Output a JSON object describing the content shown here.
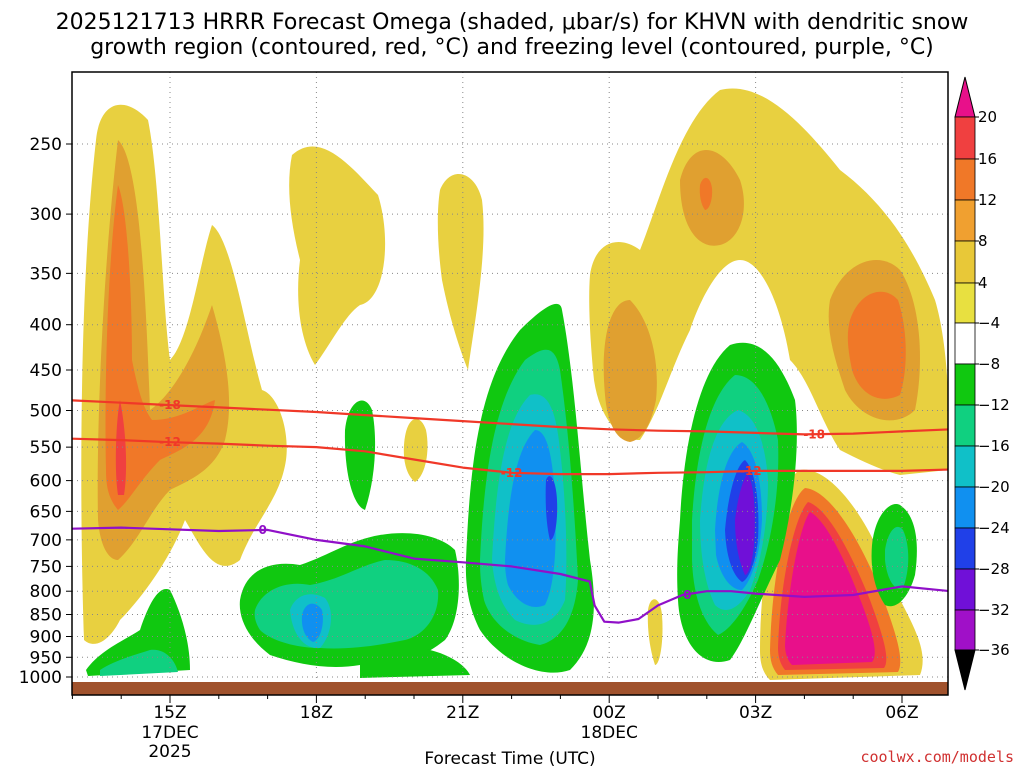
{
  "chart_data": {
    "type": "heatmap",
    "title_line1": "2025121713 HRRR Forecast Omega (shaded, μbar/s) for KHVN with dendritic snow",
    "title_line2": "growth region (contoured, red, °C) and freezing level (contoured, purple, °C)",
    "xlabel": "Forecast Time (UTC)",
    "ylabel": "",
    "x_ticks": [
      {
        "hour": 15,
        "label": "15Z",
        "date": "17DEC",
        "year": "2025"
      },
      {
        "hour": 18,
        "label": "18Z",
        "date": "",
        "year": ""
      },
      {
        "hour": 21,
        "label": "21Z",
        "date": "",
        "year": ""
      },
      {
        "hour": 24,
        "label": "00Z",
        "date": "18DEC",
        "year": ""
      },
      {
        "hour": 27,
        "label": "03Z",
        "date": "",
        "year": ""
      },
      {
        "hour": 30,
        "label": "06Z",
        "date": "",
        "year": ""
      }
    ],
    "xlim": [
      13,
      31
    ],
    "y_ticks": [
      "250",
      "300",
      "350",
      "400",
      "450",
      "500",
      "550",
      "600",
      "650",
      "700",
      "750",
      "800",
      "850",
      "900",
      "950",
      "1000"
    ],
    "y_tick_values": [
      250,
      300,
      350,
      400,
      450,
      500,
      550,
      600,
      650,
      700,
      750,
      800,
      850,
      900,
      950,
      1000
    ],
    "ylim": [
      1025,
      200
    ],
    "colorbar": {
      "labels": [
        "20",
        "16",
        "12",
        "8",
        "4",
        "−4",
        "−8",
        "−12",
        "−16",
        "−20",
        "−24",
        "−28",
        "−32",
        "−36"
      ],
      "levels": [
        20,
        16,
        12,
        8,
        4,
        -4,
        -8,
        -12,
        -16,
        -20,
        -24,
        -28,
        -32,
        -36
      ],
      "colors": [
        "#e8108a",
        "#f04040",
        "#f07828",
        "#f0a030",
        "#e8c838",
        "#e8e040",
        "#ffffff",
        "#10c810",
        "#10d080",
        "#10c0c8",
        "#1090f0",
        "#2040e8",
        "#7010d8",
        "#a010c8",
        "#a8a8a8",
        "#000000"
      ]
    },
    "omega_features": [
      {
        "name": "rising-core-2030z",
        "hour": 22.8,
        "pressure": 620,
        "min_omega": -24
      },
      {
        "name": "rising-core-0230z",
        "hour": 26.9,
        "pressure": 640,
        "min_omega": -32
      },
      {
        "name": "sinking-core-0430z",
        "hour": 28.7,
        "pressure": 900,
        "max_omega": 24
      },
      {
        "name": "sinking-core-1410z",
        "hour": 14.1,
        "pressure": 550,
        "max_omega": 16
      }
    ],
    "dgz_contours": [
      {
        "label": "-18",
        "color": "#f03828",
        "hours": [
          13,
          14,
          15,
          16,
          17,
          18,
          19,
          20,
          21,
          22,
          23,
          24,
          25,
          26,
          27,
          28,
          29,
          30,
          31
        ],
        "pressure": [
          487,
          490,
          493,
          496,
          499,
          502,
          506,
          510,
          514,
          518,
          522,
          525,
          527,
          528,
          530,
          532,
          531,
          528,
          525
        ]
      },
      {
        "label": "-12",
        "color": "#f03828",
        "hours": [
          13,
          14,
          15,
          16,
          17,
          18,
          19,
          20,
          21,
          22,
          23,
          24,
          25,
          26,
          27,
          28,
          29,
          30,
          31
        ],
        "pressure": [
          538,
          540,
          543,
          545,
          548,
          550,
          556,
          568,
          580,
          588,
          590,
          590,
          588,
          587,
          585,
          585,
          585,
          585,
          583
        ]
      }
    ],
    "freezing_level": {
      "label": "0",
      "color": "#9010c8",
      "hours": [
        13,
        14,
        15,
        16,
        17,
        18,
        19,
        20,
        21,
        22,
        23,
        23.6,
        23.7,
        23.9,
        24.2,
        24.6,
        25,
        25.5,
        26,
        26.5,
        27,
        28,
        29,
        30,
        31
      ],
      "pressure": [
        680,
        678,
        681,
        684,
        682,
        700,
        712,
        735,
        742,
        750,
        765,
        780,
        830,
        866,
        868,
        860,
        830,
        808,
        800,
        800,
        805,
        812,
        808,
        790,
        800
      ]
    }
  },
  "credit": "coolwx.com/models"
}
